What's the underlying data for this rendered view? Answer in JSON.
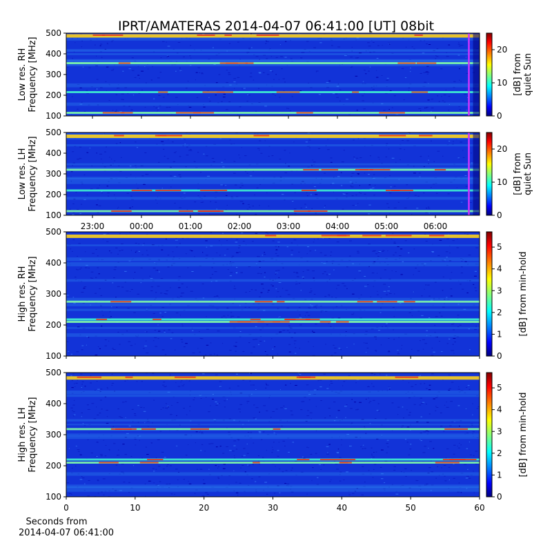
{
  "figure": {
    "title": "IPRT/AMATERAS 2014-04-07 06:41:00 [UT]   08bit",
    "bottom_xlabel_line1": "Seconds from",
    "bottom_xlabel_line2": "2014-04-07 06:41:00"
  },
  "chart_data": [
    {
      "type": "heatmap",
      "panel": "low-res-rh",
      "ylabel_line1": "Low res. RH",
      "ylabel_line2": "Frequency [MHz]",
      "ylim": [
        100,
        500
      ],
      "y_ticks": [
        100,
        200,
        300,
        400,
        500
      ],
      "x_kind": "time-of-day",
      "x_tick_labels": [
        "23:00",
        "00:00",
        "01:00",
        "02:00",
        "03:00",
        "04:00",
        "05:00",
        "06:00"
      ],
      "x_tick_labels_shown": false,
      "colorbar": {
        "label_line1": "[dB] from",
        "label_line2": "quiet Sun",
        "range": [
          0,
          25
        ],
        "ticks": [
          0,
          10,
          20
        ],
        "colormap": "jet"
      },
      "bright_bands_mhz": [
        490,
        355,
        215,
        115
      ],
      "current_time_marker": {
        "color": "#cc33ff",
        "at": "06:41"
      }
    },
    {
      "type": "heatmap",
      "panel": "low-res-lh",
      "ylabel_line1": "Low res. LH",
      "ylabel_line2": "Frequency [MHz]",
      "ylim": [
        100,
        500
      ],
      "y_ticks": [
        100,
        200,
        300,
        400,
        500
      ],
      "x_kind": "time-of-day",
      "x_tick_labels": [
        "23:00",
        "00:00",
        "01:00",
        "02:00",
        "03:00",
        "04:00",
        "05:00",
        "06:00"
      ],
      "x_tick_labels_shown": true,
      "colorbar": {
        "label_line1": "[dB] from",
        "label_line2": "quiet Sun",
        "range": [
          0,
          25
        ],
        "ticks": [
          0,
          10,
          20
        ],
        "colormap": "jet"
      },
      "bright_bands_mhz": [
        485,
        320,
        220,
        120
      ],
      "current_time_marker": {
        "color": "#cc33ff",
        "at": "06:41"
      }
    },
    {
      "type": "heatmap",
      "panel": "high-res-rh",
      "ylabel_line1": "High res. RH",
      "ylabel_line2": "Frequency [MHz]",
      "ylim": [
        100,
        500
      ],
      "y_ticks": [
        100,
        200,
        300,
        400,
        500
      ],
      "x_kind": "seconds",
      "xlim": [
        0,
        60
      ],
      "x_ticks": [
        0,
        10,
        20,
        30,
        40,
        50,
        60
      ],
      "x_tick_labels_shown": false,
      "colorbar": {
        "label": "[dB] from min-hold",
        "range": [
          0,
          5.7
        ],
        "ticks": [
          0,
          1,
          2,
          3,
          4,
          5
        ],
        "colormap": "jet"
      },
      "bright_bands_mhz": [
        488,
        275,
        218,
        210
      ]
    },
    {
      "type": "heatmap",
      "panel": "high-res-lh",
      "ylabel_line1": "High res. LH",
      "ylabel_line2": "Frequency [MHz]",
      "ylim": [
        100,
        500
      ],
      "y_ticks": [
        100,
        200,
        300,
        400,
        500
      ],
      "x_kind": "seconds",
      "xlim": [
        0,
        60
      ],
      "x_ticks": [
        0,
        10,
        20,
        30,
        40,
        50,
        60
      ],
      "x_tick_labels_shown": true,
      "colorbar": {
        "label": "[dB] from min-hold",
        "range": [
          0,
          5.7
        ],
        "ticks": [
          0,
          1,
          2,
          3,
          4,
          5
        ],
        "colormap": "jet"
      },
      "bright_bands_mhz": [
        485,
        318,
        220,
        210
      ]
    }
  ]
}
